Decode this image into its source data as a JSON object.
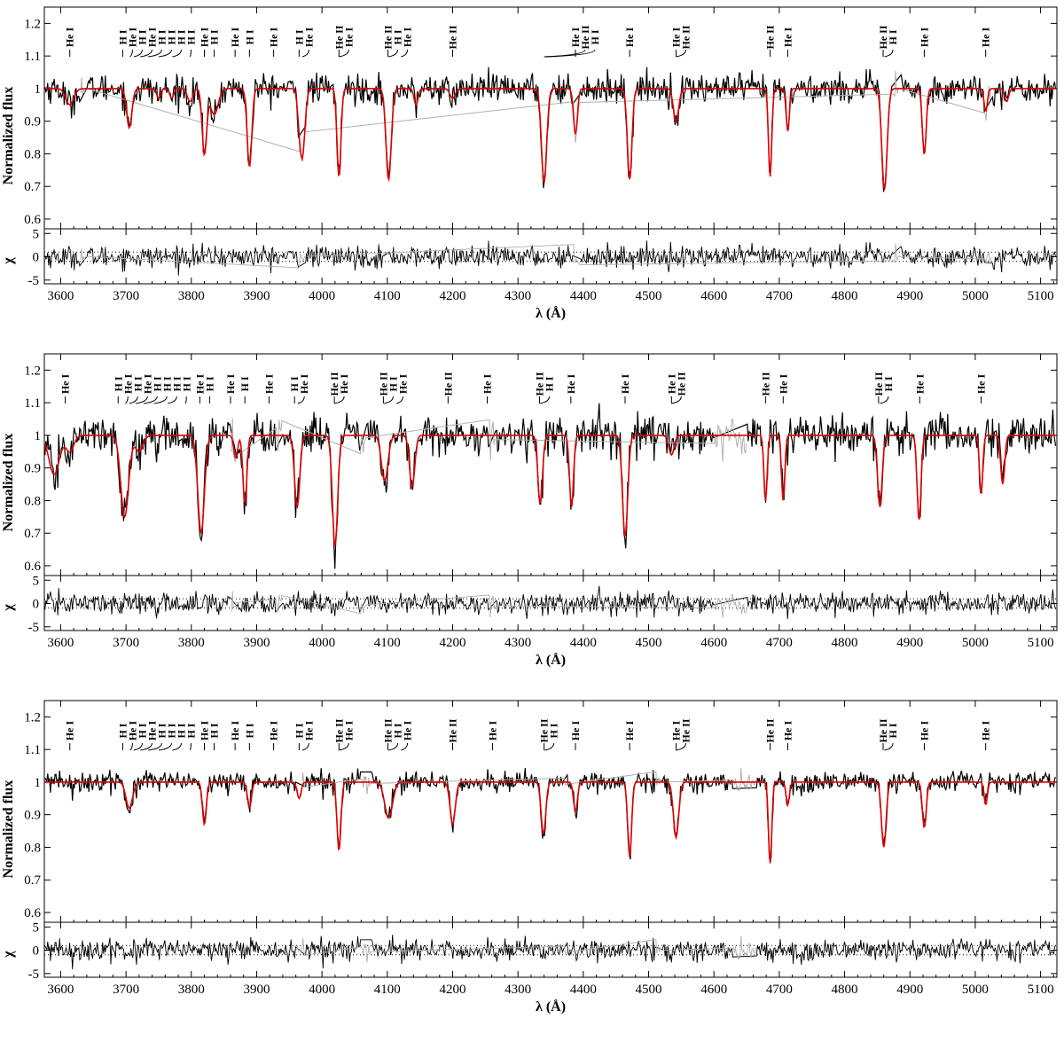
{
  "colors": {
    "observed": "#000000",
    "model": "#e00000",
    "masked": "#b0b0b0",
    "axes": "#000000"
  },
  "chart_data": [
    {
      "type": "line",
      "xlabel": "λ (Å)",
      "ylabel_flux": "Normalized flux",
      "ylabel_resid": "χ",
      "xlim": [
        3575,
        5125
      ],
      "ylim_flux": [
        0.57,
        1.25
      ],
      "ylim_resid": [
        -5.8,
        6.0
      ],
      "xticks": [
        "3600",
        "3700",
        "3800",
        "3900",
        "4000",
        "4100",
        "4200",
        "4300",
        "4400",
        "4500",
        "4600",
        "4700",
        "4800",
        "4900",
        "5000",
        "5100"
      ],
      "yticks_flux": [
        "0.6",
        "0.7",
        "0.8",
        "0.9",
        "1",
        "1.1",
        "1.2"
      ],
      "yticks_resid": [
        "-5",
        "0",
        "5"
      ],
      "grid": false,
      "noise": 0.022,
      "masked_regions": [
        [
          3630,
          3640
        ],
        [
          3965,
          3975
        ],
        [
          4385,
          4395
        ],
        [
          4875,
          4885
        ],
        [
          5015,
          5025
        ]
      ],
      "lines": [
        {
          "x": 3614,
          "depth": 0.05,
          "width": 6
        },
        {
          "x": 3705,
          "depth": 0.12,
          "width": 4
        },
        {
          "x": 3750,
          "depth": 0.03,
          "width": 3
        },
        {
          "x": 3770,
          "depth": 0.03,
          "width": 3
        },
        {
          "x": 3798,
          "depth": 0.04,
          "width": 4
        },
        {
          "x": 3820,
          "depth": 0.2,
          "width": 3.5
        },
        {
          "x": 3835,
          "depth": 0.08,
          "width": 6
        },
        {
          "x": 3889,
          "depth": 0.24,
          "width": 3.5
        },
        {
          "x": 3970,
          "depth": 0.2,
          "width": 4
        },
        {
          "x": 3965,
          "depth": 0.05,
          "width": 3
        },
        {
          "x": 4026,
          "depth": 0.27,
          "width": 3
        },
        {
          "x": 4102,
          "depth": 0.28,
          "width": 4
        },
        {
          "x": 4144,
          "depth": 0.05,
          "width": 3
        },
        {
          "x": 4200,
          "depth": 0.03,
          "width": 4
        },
        {
          "x": 4340,
          "depth": 0.29,
          "width": 4
        },
        {
          "x": 4388,
          "depth": 0.14,
          "width": 3
        },
        {
          "x": 4471,
          "depth": 0.28,
          "width": 3.5
        },
        {
          "x": 4542,
          "depth": 0.1,
          "width": 4
        },
        {
          "x": 4686,
          "depth": 0.27,
          "width": 2.5
        },
        {
          "x": 4713,
          "depth": 0.13,
          "width": 2.5
        },
        {
          "x": 4861,
          "depth": 0.31,
          "width": 4
        },
        {
          "x": 4922,
          "depth": 0.2,
          "width": 3
        },
        {
          "x": 5016,
          "depth": 0.07,
          "width": 2.5
        },
        {
          "x": 5048,
          "depth": 0.04,
          "width": 3
        }
      ],
      "line_ids": [
        {
          "x": 3614,
          "label": "He I"
        },
        {
          "x": 3695,
          "label": "H I"
        },
        {
          "x": 3706,
          "label": "He I"
        },
        {
          "x": 3712,
          "label": "H I"
        },
        {
          "x": 3722,
          "label": "He I"
        },
        {
          "x": 3734,
          "label": "H I"
        },
        {
          "x": 3750,
          "label": "H I"
        },
        {
          "x": 3771,
          "label": "H I"
        },
        {
          "x": 3798,
          "label": "H I"
        },
        {
          "x": 3820,
          "label": "He I"
        },
        {
          "x": 3835,
          "label": "H I"
        },
        {
          "x": 3867,
          "label": "He I"
        },
        {
          "x": 3889,
          "label": "H I"
        },
        {
          "x": 3926,
          "label": "He I"
        },
        {
          "x": 3965,
          "label": "H I"
        },
        {
          "x": 3970,
          "label": "He I"
        },
        {
          "x": 4026,
          "label": "He II"
        },
        {
          "x": 4026,
          "label": "He I"
        },
        {
          "x": 4101,
          "label": "He II"
        },
        {
          "x": 4102,
          "label": "H I"
        },
        {
          "x": 4121,
          "label": "He I"
        },
        {
          "x": 4200,
          "label": "He II"
        },
        {
          "x": 4388,
          "label": "He I"
        },
        {
          "x": 4340,
          "label": "He II"
        },
        {
          "x": 4341,
          "label": "H I"
        },
        {
          "x": 4471,
          "label": "He I"
        },
        {
          "x": 4542,
          "label": "He I"
        },
        {
          "x": 4542,
          "label": "He II"
        },
        {
          "x": 4686,
          "label": "He II"
        },
        {
          "x": 4713,
          "label": "He I"
        },
        {
          "x": 4859,
          "label": "He II"
        },
        {
          "x": 4861,
          "label": "H I"
        },
        {
          "x": 4922,
          "label": "He I"
        },
        {
          "x": 5016,
          "label": "He I"
        }
      ]
    },
    {
      "type": "line",
      "xlabel": "λ (Å)",
      "ylabel_flux": "Normalized flux",
      "ylabel_resid": "χ",
      "xlim": [
        3575,
        5125
      ],
      "ylim_flux": [
        0.57,
        1.25
      ],
      "ylim_resid": [
        -5.8,
        6.0
      ],
      "xticks": [
        "3600",
        "3700",
        "3800",
        "3900",
        "4000",
        "4100",
        "4200",
        "4300",
        "4400",
        "4500",
        "4600",
        "4700",
        "4800",
        "4900",
        "5000",
        "5100"
      ],
      "yticks_flux": [
        "0.6",
        "0.7",
        "0.8",
        "0.9",
        "1",
        "1.1",
        "1.2"
      ],
      "yticks_resid": [
        "-5",
        "0",
        "5"
      ],
      "grid": false,
      "noise": 0.03,
      "masked_regions": [
        [
          3860,
          3870
        ],
        [
          3930,
          3940
        ],
        [
          4058,
          4068
        ],
        [
          4255,
          4265
        ],
        [
          4600,
          4650
        ]
      ],
      "lines": [
        {
          "x": 3590,
          "depth": 0.12,
          "width": 8
        },
        {
          "x": 3614,
          "depth": 0.05,
          "width": 6
        },
        {
          "x": 3698,
          "depth": 0.25,
          "width": 6
        },
        {
          "x": 3720,
          "depth": 0.05,
          "width": 6
        },
        {
          "x": 3815,
          "depth": 0.3,
          "width": 5
        },
        {
          "x": 3868,
          "depth": 0.07,
          "width": 3
        },
        {
          "x": 3882,
          "depth": 0.21,
          "width": 3
        },
        {
          "x": 3962,
          "depth": 0.22,
          "width": 4
        },
        {
          "x": 4020,
          "depth": 0.34,
          "width": 4
        },
        {
          "x": 4096,
          "depth": 0.14,
          "width": 5
        },
        {
          "x": 4138,
          "depth": 0.16,
          "width": 4
        },
        {
          "x": 4334,
          "depth": 0.21,
          "width": 3.5
        },
        {
          "x": 4382,
          "depth": 0.22,
          "width": 3
        },
        {
          "x": 4464,
          "depth": 0.31,
          "width": 4
        },
        {
          "x": 4535,
          "depth": 0.06,
          "width": 4
        },
        {
          "x": 4679,
          "depth": 0.2,
          "width": 2.5
        },
        {
          "x": 4706,
          "depth": 0.2,
          "width": 2.5
        },
        {
          "x": 4854,
          "depth": 0.22,
          "width": 3.5
        },
        {
          "x": 4914,
          "depth": 0.26,
          "width": 3
        },
        {
          "x": 5009,
          "depth": 0.18,
          "width": 2.5
        },
        {
          "x": 5042,
          "depth": 0.15,
          "width": 3
        }
      ],
      "line_ids": [
        {
          "x": 3607,
          "label": "He I"
        },
        {
          "x": 3688,
          "label": "H I"
        },
        {
          "x": 3699,
          "label": "He I"
        },
        {
          "x": 3705,
          "label": "H I"
        },
        {
          "x": 3715,
          "label": "He I"
        },
        {
          "x": 3727,
          "label": "H I"
        },
        {
          "x": 3743,
          "label": "H I"
        },
        {
          "x": 3764,
          "label": "H I"
        },
        {
          "x": 3791,
          "label": "H I"
        },
        {
          "x": 3813,
          "label": "He I"
        },
        {
          "x": 3828,
          "label": "H I"
        },
        {
          "x": 3860,
          "label": "He I"
        },
        {
          "x": 3882,
          "label": "H I"
        },
        {
          "x": 3919,
          "label": "He I"
        },
        {
          "x": 3958,
          "label": "H I"
        },
        {
          "x": 3963,
          "label": "He I"
        },
        {
          "x": 4019,
          "label": "He II"
        },
        {
          "x": 4019,
          "label": "He I"
        },
        {
          "x": 4094,
          "label": "He II"
        },
        {
          "x": 4095,
          "label": "H I"
        },
        {
          "x": 4114,
          "label": "He I"
        },
        {
          "x": 4193,
          "label": "He II"
        },
        {
          "x": 4253,
          "label": "He I"
        },
        {
          "x": 4333,
          "label": "He II"
        },
        {
          "x": 4334,
          "label": "H I"
        },
        {
          "x": 4381,
          "label": "He I"
        },
        {
          "x": 4464,
          "label": "He I"
        },
        {
          "x": 4535,
          "label": "He I"
        },
        {
          "x": 4535,
          "label": "He II"
        },
        {
          "x": 4679,
          "label": "He II"
        },
        {
          "x": 4706,
          "label": "He I"
        },
        {
          "x": 4852,
          "label": "He II"
        },
        {
          "x": 4854,
          "label": "H I"
        },
        {
          "x": 4915,
          "label": "He I"
        },
        {
          "x": 5009,
          "label": "He I"
        }
      ]
    },
    {
      "type": "line",
      "xlabel": "λ (Å)",
      "ylabel_flux": "Normalized flux",
      "ylabel_resid": "χ",
      "xlim": [
        3575,
        5125
      ],
      "ylim_flux": [
        0.57,
        1.25
      ],
      "ylim_resid": [
        -5.8,
        6.0
      ],
      "xticks": [
        "3600",
        "3700",
        "3800",
        "3900",
        "4000",
        "4100",
        "4200",
        "4300",
        "4400",
        "4500",
        "4600",
        "4700",
        "4800",
        "4900",
        "5000",
        "5100"
      ],
      "yticks_flux": [
        "0.6",
        "0.7",
        "0.8",
        "0.9",
        "1",
        "1.1",
        "1.2"
      ],
      "yticks_resid": [
        "-5",
        "0",
        "5"
      ],
      "grid": false,
      "noise": 0.016,
      "masked_regions": [
        [
          3960,
          3975
        ],
        [
          4060,
          4075
        ],
        [
          4370,
          4375
        ],
        [
          4510,
          4520
        ],
        [
          4630,
          4665
        ]
      ],
      "lines": [
        {
          "x": 3705,
          "depth": 0.08,
          "width": 5
        },
        {
          "x": 3820,
          "depth": 0.13,
          "width": 3
        },
        {
          "x": 3889,
          "depth": 0.08,
          "width": 3
        },
        {
          "x": 3965,
          "depth": 0.05,
          "width": 3
        },
        {
          "x": 4026,
          "depth": 0.21,
          "width": 3
        },
        {
          "x": 4102,
          "depth": 0.11,
          "width": 6
        },
        {
          "x": 4200,
          "depth": 0.13,
          "width": 4
        },
        {
          "x": 4339,
          "depth": 0.16,
          "width": 3.5
        },
        {
          "x": 4388,
          "depth": 0.09,
          "width": 3
        },
        {
          "x": 4471,
          "depth": 0.23,
          "width": 3
        },
        {
          "x": 4542,
          "depth": 0.17,
          "width": 4
        },
        {
          "x": 4686,
          "depth": 0.25,
          "width": 2.5
        },
        {
          "x": 4713,
          "depth": 0.07,
          "width": 2.5
        },
        {
          "x": 4860,
          "depth": 0.2,
          "width": 3.5
        },
        {
          "x": 4922,
          "depth": 0.14,
          "width": 3
        },
        {
          "x": 5016,
          "depth": 0.07,
          "width": 2.5
        }
      ],
      "line_ids": [
        {
          "x": 3614,
          "label": "He I"
        },
        {
          "x": 3695,
          "label": "H I"
        },
        {
          "x": 3706,
          "label": "He I"
        },
        {
          "x": 3712,
          "label": "H I"
        },
        {
          "x": 3722,
          "label": "He I"
        },
        {
          "x": 3734,
          "label": "H I"
        },
        {
          "x": 3750,
          "label": "H I"
        },
        {
          "x": 3771,
          "label": "H I"
        },
        {
          "x": 3798,
          "label": "H I"
        },
        {
          "x": 3820,
          "label": "He I"
        },
        {
          "x": 3835,
          "label": "H I"
        },
        {
          "x": 3867,
          "label": "He I"
        },
        {
          "x": 3889,
          "label": "H I"
        },
        {
          "x": 3926,
          "label": "He I"
        },
        {
          "x": 3965,
          "label": "H I"
        },
        {
          "x": 3970,
          "label": "He I"
        },
        {
          "x": 4026,
          "label": "He II"
        },
        {
          "x": 4026,
          "label": "He I"
        },
        {
          "x": 4101,
          "label": "He II"
        },
        {
          "x": 4102,
          "label": "H I"
        },
        {
          "x": 4121,
          "label": "He I"
        },
        {
          "x": 4200,
          "label": "He II"
        },
        {
          "x": 4261,
          "label": "He I"
        },
        {
          "x": 4340,
          "label": "He II"
        },
        {
          "x": 4341,
          "label": "H I"
        },
        {
          "x": 4388,
          "label": "He I"
        },
        {
          "x": 4471,
          "label": "He I"
        },
        {
          "x": 4542,
          "label": "He I"
        },
        {
          "x": 4542,
          "label": "He II"
        },
        {
          "x": 4686,
          "label": "He II"
        },
        {
          "x": 4713,
          "label": "He I"
        },
        {
          "x": 4859,
          "label": "He II"
        },
        {
          "x": 4861,
          "label": "H I"
        },
        {
          "x": 4922,
          "label": "He I"
        },
        {
          "x": 5016,
          "label": "He I"
        }
      ]
    }
  ]
}
